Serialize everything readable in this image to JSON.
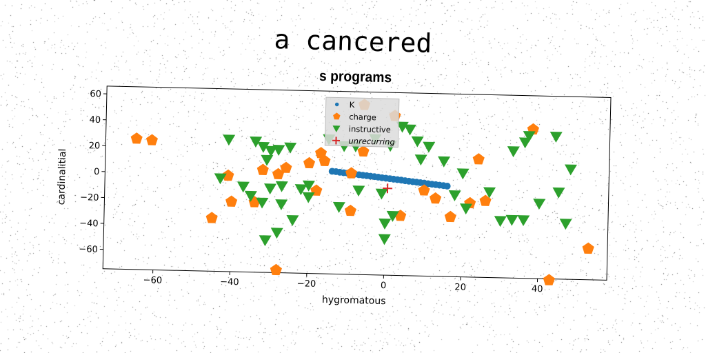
{
  "page": {
    "title": "a cancered"
  },
  "chart_data": {
    "type": "scatter",
    "title": "s programs",
    "xlabel": "hygromatous",
    "ylabel": "cardinalitial",
    "xlim": [
      -73,
      58
    ],
    "ylim": [
      -75,
      66
    ],
    "xticks": [
      -60,
      -40,
      -20,
      0,
      20,
      40
    ],
    "yticks": [
      60,
      40,
      20,
      0,
      -20,
      -40,
      -60
    ],
    "legend_position": "top-center",
    "series": [
      {
        "name": "K",
        "marker": "circle",
        "color": "#1f77b4",
        "points": [
          [
            -14.0,
            4.2
          ],
          [
            -13.0,
            4.0
          ],
          [
            -12.0,
            3.6
          ],
          [
            -11.0,
            3.3
          ],
          [
            -10.0,
            3.0
          ],
          [
            -9.0,
            2.7
          ],
          [
            -8.0,
            2.4
          ],
          [
            -7.0,
            2.0
          ],
          [
            -6.0,
            1.7
          ],
          [
            -5.0,
            1.4
          ],
          [
            -4.0,
            1.1
          ],
          [
            -3.0,
            0.8
          ],
          [
            -2.0,
            0.5
          ],
          [
            -1.0,
            0.1
          ],
          [
            0.0,
            -0.2
          ],
          [
            1.0,
            -0.5
          ],
          [
            2.0,
            -0.8
          ],
          [
            3.0,
            -1.1
          ],
          [
            4.0,
            -1.4
          ],
          [
            5.0,
            -1.8
          ],
          [
            6.0,
            -2.1
          ],
          [
            7.0,
            -2.4
          ],
          [
            8.0,
            -2.7
          ],
          [
            9.0,
            -3.0
          ],
          [
            10.0,
            -3.3
          ],
          [
            11.0,
            -3.7
          ],
          [
            12.0,
            -4.0
          ],
          [
            13.0,
            -4.3
          ],
          [
            14.0,
            -4.6
          ],
          [
            15.0,
            -4.9
          ],
          [
            16.0,
            -5.2
          ]
        ]
      },
      {
        "name": "charge",
        "marker": "pentagon",
        "color": "#ff7f0e",
        "points": [
          [
            -65,
            26
          ],
          [
            -61,
            25
          ],
          [
            -41,
            -1
          ],
          [
            -28,
            1
          ],
          [
            -26,
            6
          ],
          [
            -20,
            10
          ],
          [
            -17,
            18
          ],
          [
            -16,
            12
          ],
          [
            -9,
            3
          ],
          [
            -6,
            20
          ],
          [
            -6,
            56
          ],
          [
            2,
            48
          ],
          [
            10,
            -9
          ],
          [
            13,
            -15
          ],
          [
            22,
            -18
          ],
          [
            26,
            -16
          ],
          [
            24,
            16
          ],
          [
            38,
            40
          ],
          [
            -40,
            -21
          ],
          [
            -45,
            -34
          ],
          [
            -34,
            -21
          ],
          [
            -28,
            -73
          ],
          [
            -18,
            -11
          ],
          [
            -9,
            -26
          ],
          [
            4,
            -29
          ],
          [
            17,
            -29
          ],
          [
            -32,
            4
          ],
          [
            43,
            -76
          ],
          [
            53,
            -51
          ]
        ]
      },
      {
        "name": "instructive",
        "marker": "triangle-down",
        "color": "#2ca02c",
        "points": [
          [
            -41,
            27
          ],
          [
            -34,
            26
          ],
          [
            -32,
            22
          ],
          [
            -30,
            19
          ],
          [
            -25,
            22
          ],
          [
            -11,
            24
          ],
          [
            -8,
            24
          ],
          [
            4,
            40
          ],
          [
            8,
            29
          ],
          [
            11,
            25
          ],
          [
            6,
            38
          ],
          [
            9,
            15
          ],
          [
            -43,
            -3
          ],
          [
            -37,
            -9
          ],
          [
            -35,
            -16
          ],
          [
            -30,
            -10
          ],
          [
            -27,
            -22
          ],
          [
            -24,
            -34
          ],
          [
            -22,
            -10
          ],
          [
            -20,
            -16
          ],
          [
            -12,
            -23
          ],
          [
            -7,
            -10
          ],
          [
            -1,
            -12
          ],
          [
            2,
            -29
          ],
          [
            0,
            -35
          ],
          [
            0,
            -47
          ],
          [
            18,
            -12
          ],
          [
            21,
            -22
          ],
          [
            27,
            -9
          ],
          [
            30,
            -31
          ],
          [
            33,
            -30
          ],
          [
            36,
            -30
          ],
          [
            40,
            -17
          ],
          [
            45,
            -8
          ],
          [
            47,
            -32
          ],
          [
            20,
            5
          ],
          [
            33,
            23
          ],
          [
            36,
            30
          ],
          [
            37,
            35
          ],
          [
            44,
            35
          ],
          [
            48,
            10
          ],
          [
            -31,
            -50
          ],
          [
            -28,
            -44
          ],
          [
            -32,
            -21
          ],
          [
            -27,
            -8
          ],
          [
            -20,
            -7
          ],
          [
            -15,
            29
          ],
          [
            -28,
            20
          ],
          [
            -31,
            12
          ],
          [
            15,
            14
          ],
          [
            1,
            25
          ],
          [
            -3,
            30
          ]
        ]
      },
      {
        "name": "unrecurring",
        "marker": "plus",
        "color": "#d62728",
        "points": [
          [
            0.5,
            -8
          ]
        ]
      }
    ]
  }
}
